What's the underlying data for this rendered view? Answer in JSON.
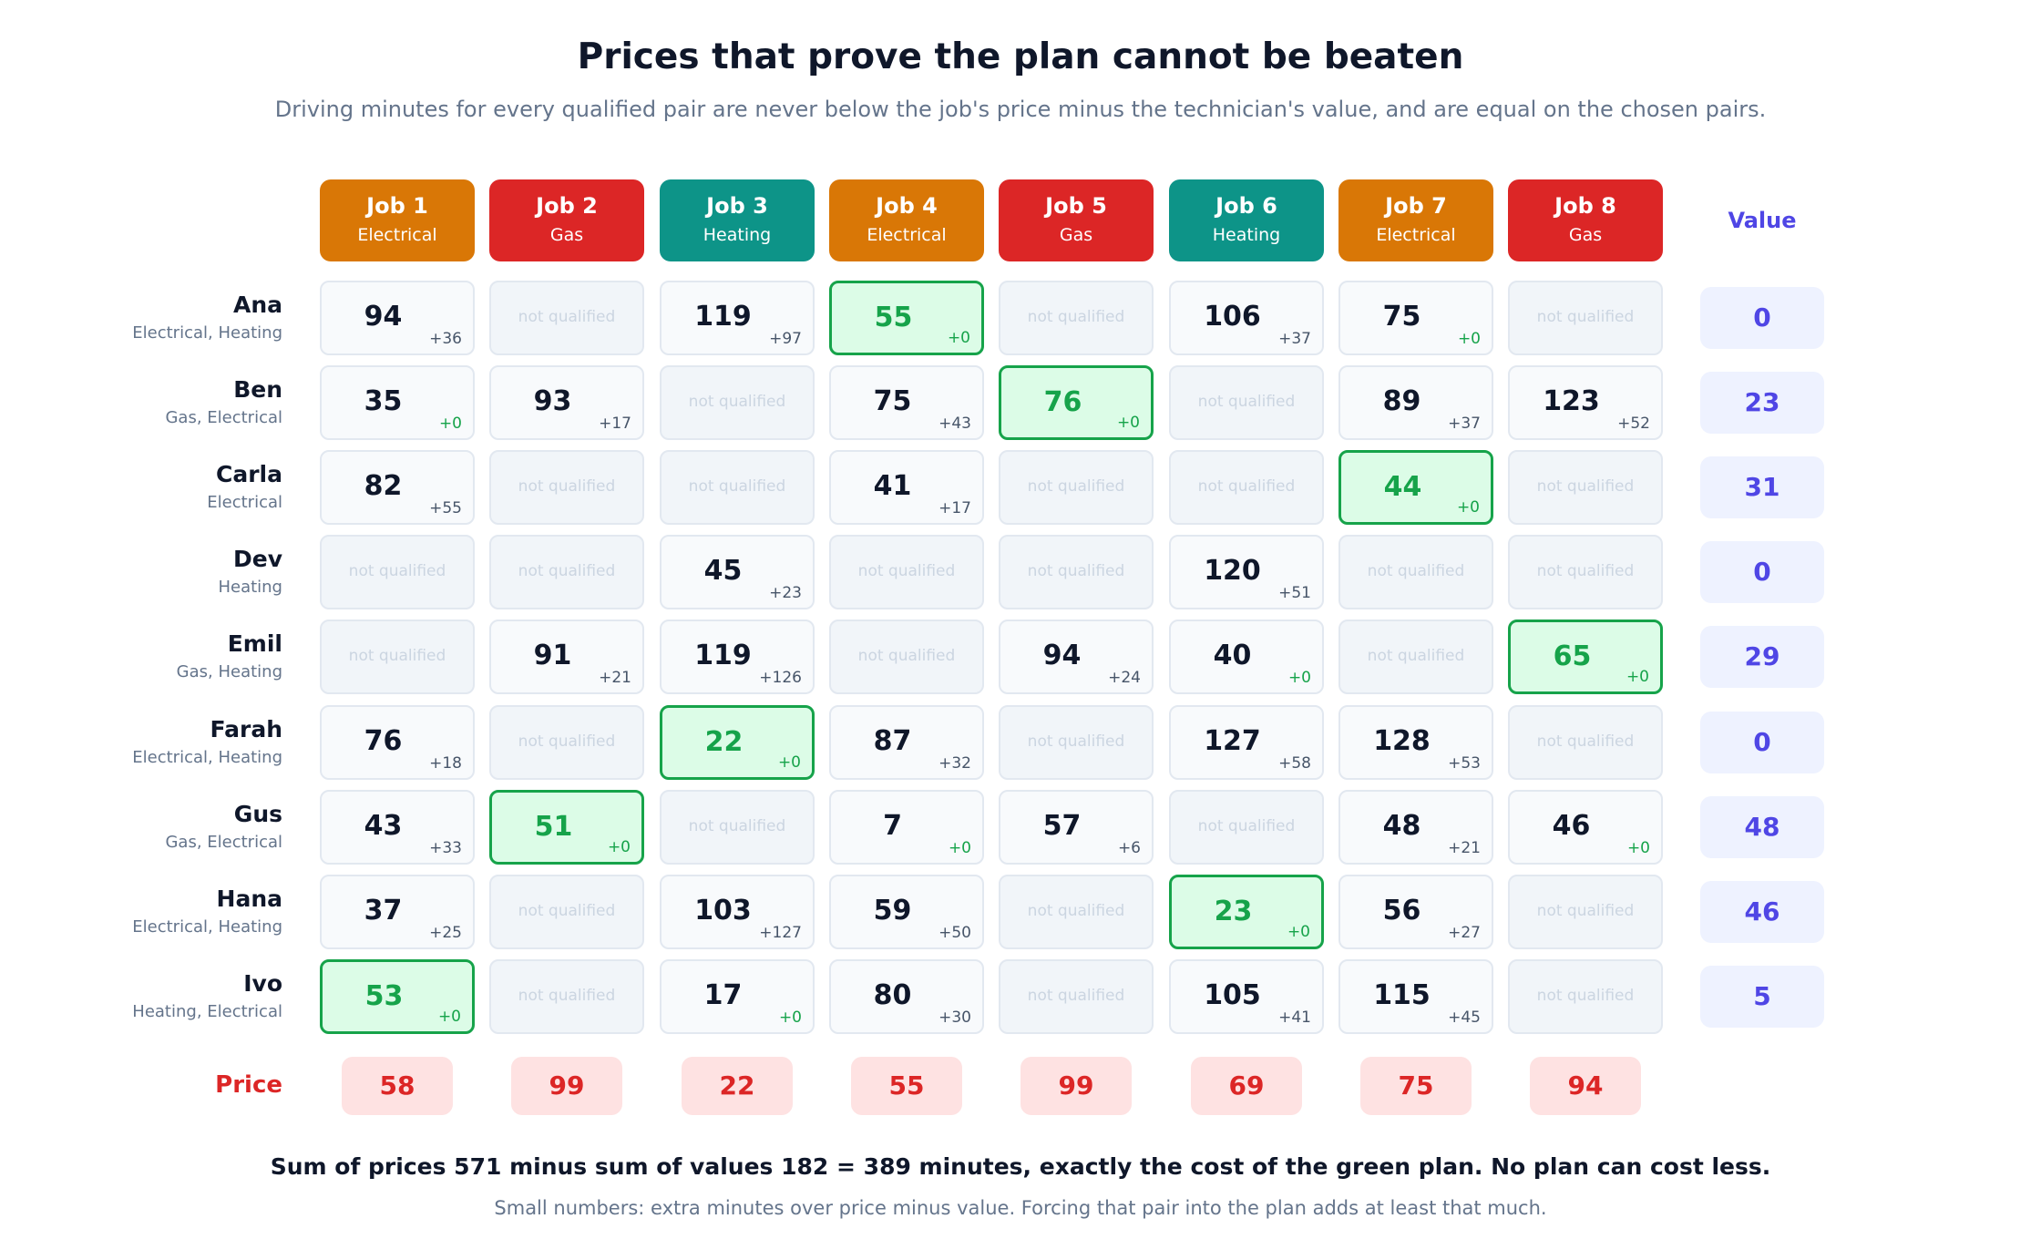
{
  "title": "Prices that prove the plan cannot be beaten",
  "subtitle": "Driving minutes for every qualified pair are never below the job's price minus the technician's value, and are equal on the chosen pairs.",
  "value_header": "Value",
  "price_label": "Price",
  "not_qualified_text": "not qualified",
  "colors": {
    "Electrical": "#d97706",
    "Gas": "#dc2626",
    "Heating": "#0d9488",
    "selected": "#16a34a",
    "value": "#4f46e5",
    "price": "#dc2626"
  },
  "jobs": [
    {
      "name": "Job 1",
      "type": "Electrical",
      "price": "58"
    },
    {
      "name": "Job 2",
      "type": "Gas",
      "price": "99"
    },
    {
      "name": "Job 3",
      "type": "Heating",
      "price": "22"
    },
    {
      "name": "Job 4",
      "type": "Electrical",
      "price": "55"
    },
    {
      "name": "Job 5",
      "type": "Gas",
      "price": "99"
    },
    {
      "name": "Job 6",
      "type": "Heating",
      "price": "69"
    },
    {
      "name": "Job 7",
      "type": "Electrical",
      "price": "75"
    },
    {
      "name": "Job 8",
      "type": "Gas",
      "price": "94"
    }
  ],
  "technicians": [
    {
      "name": "Ana",
      "skills": "Electrical, Heating",
      "value": "0",
      "cells": [
        {
          "m": "94",
          "s": "+36"
        },
        null,
        {
          "m": "119",
          "s": "+97"
        },
        {
          "m": "55",
          "s": "+0",
          "sel": true
        },
        null,
        {
          "m": "106",
          "s": "+37"
        },
        {
          "m": "75",
          "s": "+0"
        },
        null
      ]
    },
    {
      "name": "Ben",
      "skills": "Gas, Electrical",
      "value": "23",
      "cells": [
        {
          "m": "35",
          "s": "+0"
        },
        {
          "m": "93",
          "s": "+17"
        },
        null,
        {
          "m": "75",
          "s": "+43"
        },
        {
          "m": "76",
          "s": "+0",
          "sel": true
        },
        null,
        {
          "m": "89",
          "s": "+37"
        },
        {
          "m": "123",
          "s": "+52"
        }
      ]
    },
    {
      "name": "Carla",
      "skills": "Electrical",
      "value": "31",
      "cells": [
        {
          "m": "82",
          "s": "+55"
        },
        null,
        null,
        {
          "m": "41",
          "s": "+17"
        },
        null,
        null,
        {
          "m": "44",
          "s": "+0",
          "sel": true
        },
        null
      ]
    },
    {
      "name": "Dev",
      "skills": "Heating",
      "value": "0",
      "cells": [
        null,
        null,
        {
          "m": "45",
          "s": "+23"
        },
        null,
        null,
        {
          "m": "120",
          "s": "+51"
        },
        null,
        null
      ]
    },
    {
      "name": "Emil",
      "skills": "Gas, Heating",
      "value": "29",
      "cells": [
        null,
        {
          "m": "91",
          "s": "+21"
        },
        {
          "m": "119",
          "s": "+126"
        },
        null,
        {
          "m": "94",
          "s": "+24"
        },
        {
          "m": "40",
          "s": "+0"
        },
        null,
        {
          "m": "65",
          "s": "+0",
          "sel": true
        }
      ]
    },
    {
      "name": "Farah",
      "skills": "Electrical, Heating",
      "value": "0",
      "cells": [
        {
          "m": "76",
          "s": "+18"
        },
        null,
        {
          "m": "22",
          "s": "+0",
          "sel": true
        },
        {
          "m": "87",
          "s": "+32"
        },
        null,
        {
          "m": "127",
          "s": "+58"
        },
        {
          "m": "128",
          "s": "+53"
        },
        null
      ]
    },
    {
      "name": "Gus",
      "skills": "Gas, Electrical",
      "value": "48",
      "cells": [
        {
          "m": "43",
          "s": "+33"
        },
        {
          "m": "51",
          "s": "+0",
          "sel": true
        },
        null,
        {
          "m": "7",
          "s": "+0"
        },
        {
          "m": "57",
          "s": "+6"
        },
        null,
        {
          "m": "48",
          "s": "+21"
        },
        {
          "m": "46",
          "s": "+0"
        }
      ]
    },
    {
      "name": "Hana",
      "skills": "Electrical, Heating",
      "value": "46",
      "cells": [
        {
          "m": "37",
          "s": "+25"
        },
        null,
        {
          "m": "103",
          "s": "+127"
        },
        {
          "m": "59",
          "s": "+50"
        },
        null,
        {
          "m": "23",
          "s": "+0",
          "sel": true
        },
        {
          "m": "56",
          "s": "+27"
        },
        null
      ]
    },
    {
      "name": "Ivo",
      "skills": "Heating, Electrical",
      "value": "5",
      "cells": [
        {
          "m": "53",
          "s": "+0",
          "sel": true
        },
        null,
        {
          "m": "17",
          "s": "+0"
        },
        {
          "m": "80",
          "s": "+30"
        },
        null,
        {
          "m": "105",
          "s": "+41"
        },
        {
          "m": "115",
          "s": "+45"
        },
        null
      ]
    }
  ],
  "summary": "Sum of prices 571 minus sum of values 182 = 389 minutes, exactly the cost of the green plan. No plan can cost less.",
  "note": "Small numbers: extra minutes over price minus value. Forcing that pair into the plan adds at least that much."
}
